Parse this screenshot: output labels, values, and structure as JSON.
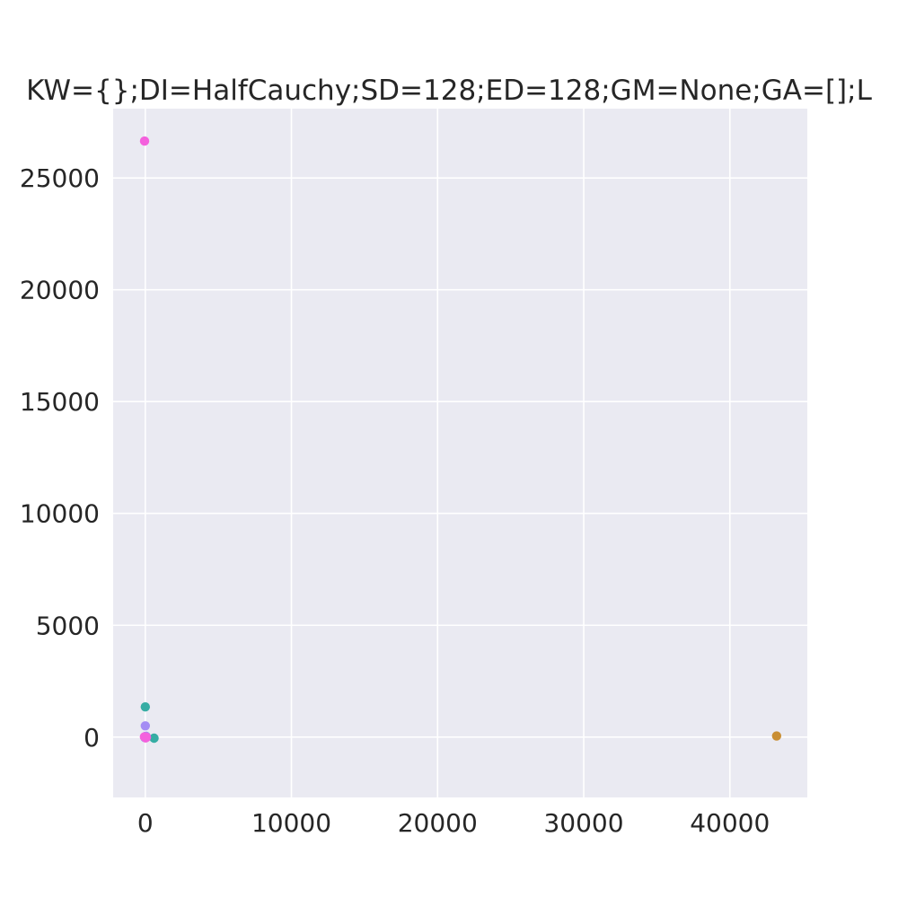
{
  "chart_data": {
    "type": "scatter",
    "title": "KW={};DI=HalfCauchy;SD=128;ED=128;GM=None;GA=[];L",
    "xlabel": "",
    "ylabel": "",
    "xlim": [
      -2200,
      45300
    ],
    "ylim": [
      -2700,
      28100
    ],
    "xticks": [
      0,
      10000,
      20000,
      30000,
      40000
    ],
    "yticks": [
      0,
      5000,
      10000,
      15000,
      20000,
      25000
    ],
    "xtick_labels": [
      "0",
      "10000",
      "20000",
      "30000",
      "40000"
    ],
    "ytick_labels": [
      "0",
      "5000",
      "10000",
      "15000",
      "20000",
      "25000"
    ],
    "grid": true,
    "legend": "none",
    "background_color": "#EAEAF2",
    "grid_color": "#FFFFFF",
    "points": [
      {
        "x": -50,
        "y": 26650,
        "color": "#F461DD"
      },
      {
        "x": 0,
        "y": 1350,
        "color": "#36ADA4"
      },
      {
        "x": 0,
        "y": 500,
        "color": "#A48CF4"
      },
      {
        "x": 600,
        "y": -50,
        "color": "#36ADA4"
      },
      {
        "x": 43200,
        "y": 50,
        "color": "#C98E33"
      },
      {
        "x": 0,
        "y": 0,
        "color": "#F77189"
      },
      {
        "x": 50,
        "y": 30,
        "color": "#50B131"
      },
      {
        "x": -30,
        "y": -20,
        "color": "#3BA3EC"
      },
      {
        "x": 40,
        "y": 40,
        "color": "#A48CF4"
      },
      {
        "x": 20,
        "y": -40,
        "color": "#F461DD"
      },
      {
        "x": -60,
        "y": 10,
        "color": "#F461DD"
      },
      {
        "x": 80,
        "y": -10,
        "color": "#F461DD"
      }
    ]
  }
}
